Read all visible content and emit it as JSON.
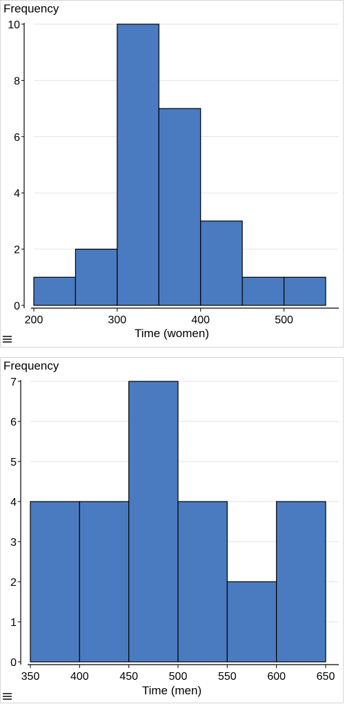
{
  "chart_data": [
    {
      "type": "bar",
      "ylabel": "Frequency",
      "xlabel": "Time (women)",
      "bin_edges": [
        200,
        250,
        300,
        350,
        400,
        450,
        500,
        550
      ],
      "values": [
        1,
        2,
        10,
        7,
        3,
        1,
        1
      ],
      "xticks": [
        200,
        300,
        400,
        500
      ],
      "yticks": [
        0,
        2,
        4,
        6,
        8,
        10
      ],
      "xlim": [
        200,
        550
      ],
      "ylim": [
        0,
        10
      ],
      "grid": true,
      "bar_color": "#4a7bc0"
    },
    {
      "type": "bar",
      "ylabel": "Frequency",
      "xlabel": "Time (men)",
      "bin_edges": [
        350,
        400,
        450,
        500,
        550,
        600,
        650
      ],
      "values": [
        4,
        4,
        7,
        4,
        2,
        4
      ],
      "xticks": [
        350,
        400,
        450,
        500,
        550,
        600,
        650
      ],
      "yticks": [
        0,
        1,
        2,
        3,
        4,
        5,
        6,
        7
      ],
      "xlim": [
        350,
        650
      ],
      "ylim": [
        0,
        7
      ],
      "grid": true,
      "bar_color": "#4a7bc0"
    }
  ],
  "menu_icon": "hamburger-menu-icon"
}
